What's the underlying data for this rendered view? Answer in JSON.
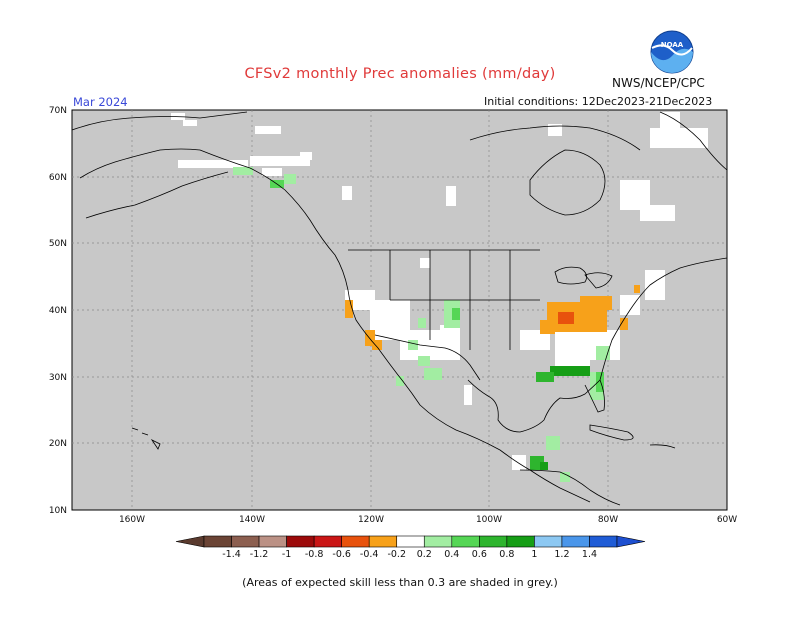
{
  "header": {
    "title": "CFSv2 monthly Prec anomalies (mm/day)",
    "org": "NWS/NCEP/CPC",
    "month": "Mar 2024",
    "initial_conditions": "Initial conditions: 12Dec2023-21Dec2023",
    "logo_text": "NOAA"
  },
  "axes": {
    "lat_labels": [
      "70N",
      "60N",
      "50N",
      "40N",
      "30N",
      "20N",
      "10N"
    ],
    "lon_labels": [
      "160W",
      "140W",
      "120W",
      "100W",
      "80W",
      "60W"
    ]
  },
  "colorbar": {
    "labels": [
      "-1.4",
      "-1.2",
      "-1",
      "-0.8",
      "-0.6",
      "-0.4",
      "-0.2",
      "0.2",
      "0.4",
      "0.6",
      "0.8",
      "1",
      "1.2",
      "1.4"
    ],
    "colors": [
      "#6b4435",
      "#8c5f50",
      "#bb9185",
      "#9c0a0a",
      "#ca1616",
      "#e8520d",
      "#f7a11a",
      "#ffffff",
      "#a2eda2",
      "#55d655",
      "#2eb52e",
      "#169e16",
      "#8cc8f2",
      "#4a96ea",
      "#1f5cd6"
    ],
    "low_end_color": "#5a3a2e",
    "high_end_color": "#1e4fd0"
  },
  "map": {
    "land_mask_color": "#c8c8c8",
    "gridline_color": "#888888"
  },
  "footnote": "(Areas of expected skill less than 0.3 are shaded in grey.)"
}
